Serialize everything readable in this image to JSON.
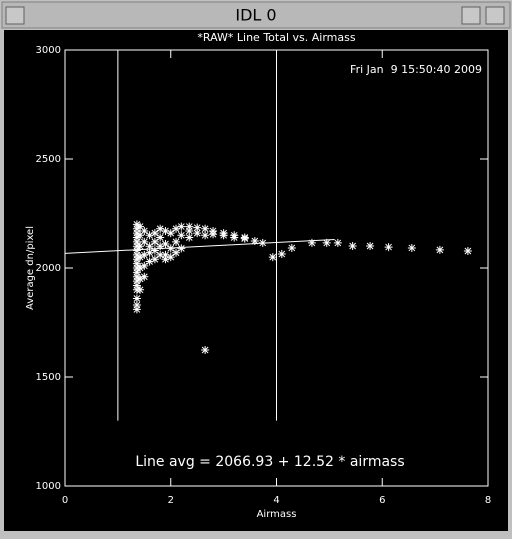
{
  "window": {
    "title": "IDL 0"
  },
  "chart_data": {
    "type": "scatter",
    "title": "*RAW* Line Total vs. Airmass",
    "timestamp": "Fri Jan  9 15:50:40 2009",
    "annotation": "Line avg = 2066.93 + 12.52 * airmass",
    "x_label": "Airmass",
    "y_label": "Average dn/pixel",
    "color": "#ffffff",
    "xlim": [
      0,
      8
    ],
    "xticks": [
      0,
      2,
      4,
      6,
      8
    ],
    "ylim": [
      1000,
      3000
    ],
    "yticks": [
      1000,
      1500,
      2000,
      2500,
      3000
    ],
    "x": [
      1.36,
      1.36,
      1.36,
      1.36,
      1.36,
      1.36,
      1.36,
      1.36,
      1.36,
      1.36,
      1.36,
      1.36,
      1.36,
      1.36,
      1.36,
      1.36,
      1.36,
      1.36,
      1.36,
      1.42,
      1.42,
      1.42,
      1.42,
      1.42,
      1.42,
      1.42,
      1.5,
      1.5,
      1.5,
      1.5,
      1.5,
      1.6,
      1.6,
      1.6,
      1.6,
      1.7,
      1.7,
      1.7,
      1.7,
      1.8,
      1.8,
      1.8,
      1.8,
      1.9,
      1.9,
      1.9,
      1.9,
      2.0,
      2.0,
      2.0,
      2.1,
      2.1,
      2.1,
      2.2,
      2.2,
      2.2,
      2.35,
      2.35,
      2.35,
      2.5,
      2.5,
      2.65,
      2.65,
      2.65,
      2.8,
      2.8,
      3.0,
      3.0,
      3.2,
      3.2,
      3.4,
      3.4,
      3.59,
      3.74,
      3.93,
      4.1,
      4.29,
      4.67,
      4.95,
      5.16,
      5.44,
      5.77,
      6.12,
      6.56,
      7.09,
      7.62
    ],
    "values": [
      2200,
      2180,
      2160,
      2140,
      2120,
      2100,
      2080,
      2060,
      2040,
      2020,
      2000,
      1980,
      1960,
      1940,
      1920,
      1900,
      1860,
      1830,
      1810,
      2190,
      2150,
      2100,
      2050,
      2000,
      1950,
      1900,
      2170,
      2120,
      2060,
      2010,
      1960,
      2150,
      2100,
      2070,
      2030,
      2160,
      2120,
      2080,
      2040,
      2180,
      2140,
      2100,
      2060,
      2170,
      2110,
      2060,
      2040,
      2160,
      2090,
      2050,
      2180,
      2120,
      2070,
      2190,
      2150,
      2090,
      2190,
      2170,
      2140,
      2185,
      2160,
      2180,
      2150,
      1624,
      2170,
      2155,
      2160,
      2150,
      2150,
      2140,
      2140,
      2135,
      2124,
      2115,
      2050,
      2064,
      2092,
      2115,
      2115,
      2115,
      2101,
      2101,
      2096,
      2092,
      2083,
      2078
    ],
    "fit": {
      "intercept": 2066.93,
      "slope": 12.52,
      "xlim": [
        0,
        5.1
      ]
    },
    "vlines": {
      "x": [
        1,
        4
      ],
      "ylim": [
        1300,
        3000
      ]
    }
  }
}
